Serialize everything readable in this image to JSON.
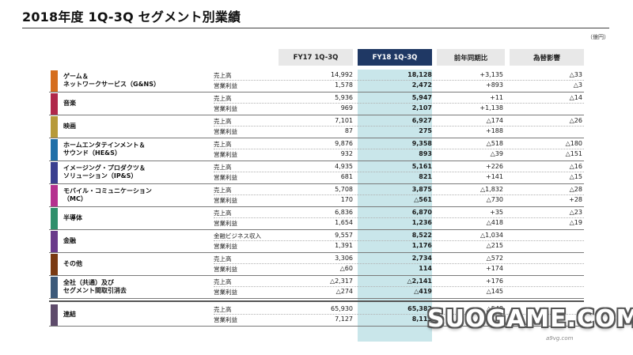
{
  "title": "2018年度 1Q-3Q セグメント別業績",
  "unit": "（億円）",
  "columns": {
    "fy17": "FY17 1Q-3Q",
    "fy18": "FY18 1Q-3Q",
    "yoy": "前年同期比",
    "fx": "為替影響"
  },
  "segments": [
    {
      "name1": "ゲーム＆",
      "name2": "ネットワークサービス（G&NS）",
      "color": "#d56d1e",
      "rows": [
        {
          "label": "売上高",
          "fy17": "14,992",
          "fy18": "18,128",
          "yoy": "+3,135",
          "fx": "△33"
        },
        {
          "label": "営業利益",
          "fy17": "1,578",
          "fy18": "2,472",
          "yoy": "+893",
          "fx": "△3"
        }
      ]
    },
    {
      "name1": "音楽",
      "name2": "",
      "color": "#b0284a",
      "rows": [
        {
          "label": "売上高",
          "fy17": "5,936",
          "fy18": "5,947",
          "yoy": "+11",
          "fx": "△14"
        },
        {
          "label": "営業利益",
          "fy17": "969",
          "fy18": "2,107",
          "yoy": "+1,138",
          "fx": ""
        }
      ]
    },
    {
      "name1": "映画",
      "name2": "",
      "color": "#b79a3a",
      "rows": [
        {
          "label": "売上高",
          "fy17": "7,101",
          "fy18": "6,927",
          "yoy": "△174",
          "fx": "△26"
        },
        {
          "label": "営業利益",
          "fy17": "87",
          "fy18": "275",
          "yoy": "+188",
          "fx": ""
        }
      ]
    },
    {
      "name1": "ホームエンタテインメント＆",
      "name2": "サウンド（HE&S）",
      "color": "#1f6fa8",
      "rows": [
        {
          "label": "売上高",
          "fy17": "9,876",
          "fy18": "9,358",
          "yoy": "△518",
          "fx": "△180"
        },
        {
          "label": "営業利益",
          "fy17": "932",
          "fy18": "893",
          "yoy": "△39",
          "fx": "△151"
        }
      ]
    },
    {
      "name1": "イメージング・プロダクツ＆",
      "name2": "ソリューション（IP&S）",
      "color": "#3a3f8f",
      "rows": [
        {
          "label": "売上高",
          "fy17": "4,935",
          "fy18": "5,161",
          "yoy": "+226",
          "fx": "△16"
        },
        {
          "label": "営業利益",
          "fy17": "681",
          "fy18": "821",
          "yoy": "+141",
          "fx": "△15"
        }
      ]
    },
    {
      "name1": "モバイル・コミュニケーション",
      "name2": "（MC）",
      "color": "#b5318f",
      "rows": [
        {
          "label": "売上高",
          "fy17": "5,708",
          "fy18": "3,875",
          "yoy": "△1,832",
          "fx": "△28"
        },
        {
          "label": "営業利益",
          "fy17": "170",
          "fy18": "△561",
          "yoy": "△730",
          "fx": "+28"
        }
      ]
    },
    {
      "name1": "半導体",
      "name2": "",
      "color": "#2f8f6b",
      "rows": [
        {
          "label": "売上高",
          "fy17": "6,836",
          "fy18": "6,870",
          "yoy": "+35",
          "fx": "△23"
        },
        {
          "label": "営業利益",
          "fy17": "1,654",
          "fy18": "1,236",
          "yoy": "△418",
          "fx": "△19"
        }
      ]
    },
    {
      "name1": "金融",
      "name2": "",
      "color": "#6a3a8a",
      "rows": [
        {
          "label": "金融ビジネス収入",
          "fy17": "9,557",
          "fy18": "8,522",
          "yoy": "△1,034",
          "fx": ""
        },
        {
          "label": "営業利益",
          "fy17": "1,391",
          "fy18": "1,176",
          "yoy": "△215",
          "fx": ""
        }
      ]
    },
    {
      "name1": "その他",
      "name2": "",
      "color": "#7a3a12",
      "rows": [
        {
          "label": "売上高",
          "fy17": "3,306",
          "fy18": "2,734",
          "yoy": "△572",
          "fx": ""
        },
        {
          "label": "営業利益",
          "fy17": "△60",
          "fy18": "114",
          "yoy": "+174",
          "fx": ""
        }
      ]
    },
    {
      "name1": "全社（共通）及び",
      "name2": "セグメント間取引消去",
      "color": "#3d5a7a",
      "rows": [
        {
          "label": "売上高",
          "fy17": "△2,317",
          "fy18": "△2,141",
          "yoy": "+176",
          "fx": ""
        },
        {
          "label": "営業利益",
          "fy17": "△274",
          "fy18": "△419",
          "yoy": "△145",
          "fx": ""
        }
      ]
    },
    {
      "name1": "連結",
      "name2": "",
      "color": "#5e4b6b",
      "rows": [
        {
          "label": "売上高",
          "fy17": "65,930",
          "fy18": "65,382",
          "yoy": "△548",
          "fx": ""
        },
        {
          "label": "営業利益",
          "fy17": "7,127",
          "fy18": "8,115",
          "yoy": "",
          "fx": ""
        }
      ]
    }
  ],
  "watermark": "SUOGAME.COM",
  "watermark_sub": "a9vg.com"
}
